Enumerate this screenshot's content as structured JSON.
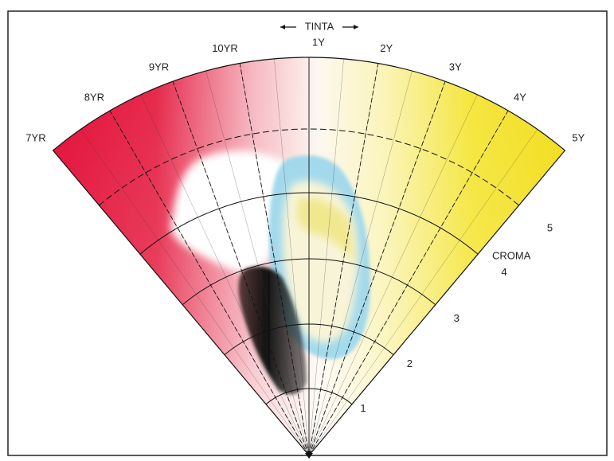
{
  "header": {
    "title": "TINTA"
  },
  "hues": [
    "7YR",
    "8YR",
    "9YR",
    "10YR",
    "1Y",
    "2Y",
    "3Y",
    "4Y",
    "5Y"
  ],
  "chroma": {
    "label": "CROMA",
    "steps": [
      "1",
      "2",
      "3",
      "4",
      "5"
    ]
  }
}
